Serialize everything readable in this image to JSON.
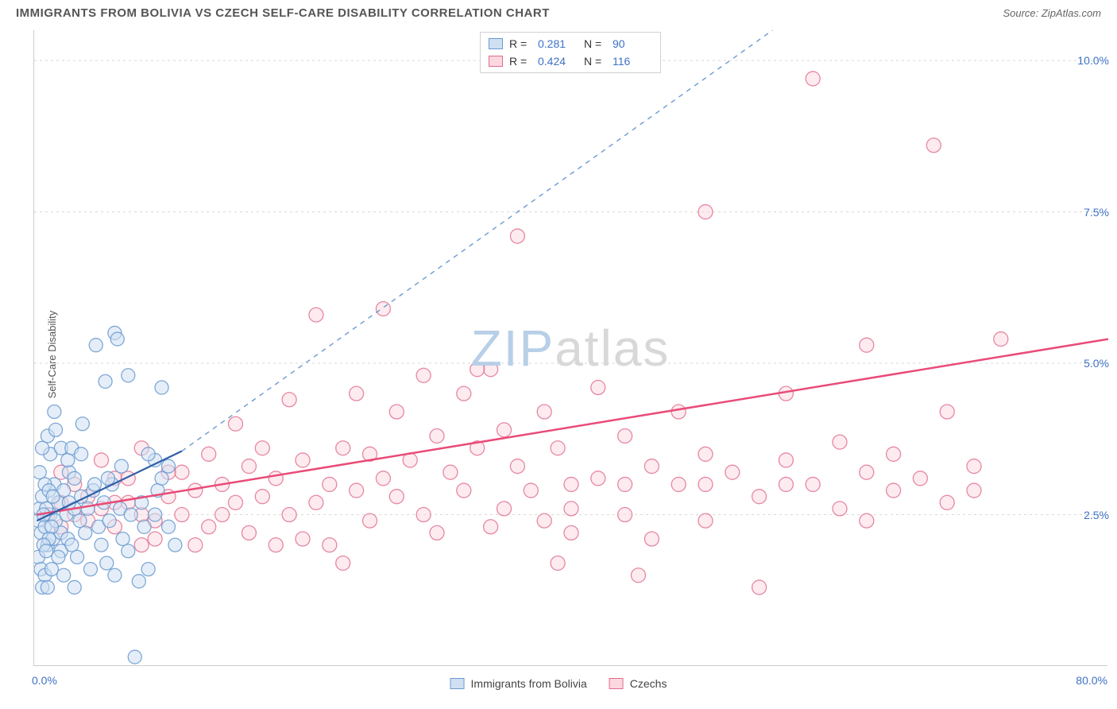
{
  "header": {
    "title": "IMMIGRANTS FROM BOLIVIA VS CZECH SELF-CARE DISABILITY CORRELATION CHART",
    "source": "Source: ZipAtlas.com"
  },
  "chart": {
    "type": "scatter",
    "ylabel": "Self-Care Disability",
    "watermark_a": "ZIP",
    "watermark_b": "atlas",
    "background_color": "#ffffff",
    "grid_color": "#d8d8d8",
    "axis_color": "#cccccc",
    "tick_color_x": "#cccccc",
    "xlim": [
      0,
      80
    ],
    "ylim": [
      0,
      10.5
    ],
    "x_ticks": [
      0,
      10,
      20,
      30,
      40,
      50,
      60,
      70,
      80
    ],
    "y_gridlines": [
      2.5,
      5.0,
      7.5,
      10.0
    ],
    "x_axis_labels": [
      {
        "v": 0,
        "t": "0.0%"
      },
      {
        "v": 80,
        "t": "80.0%"
      }
    ],
    "y_axis_labels": [
      {
        "v": 2.5,
        "t": "2.5%"
      },
      {
        "v": 5.0,
        "t": "5.0%"
      },
      {
        "v": 7.5,
        "t": "7.5%"
      },
      {
        "v": 10.0,
        "t": "10.0%"
      }
    ],
    "series": [
      {
        "name": "Immigrants from Bolivia",
        "marker_fill": "#cfe0f3",
        "marker_stroke": "#6a9ad0",
        "stroke_opacity": 0.85,
        "fill_opacity": 0.55,
        "marker_radius": 8.5,
        "line_color": "#2f5fa8",
        "line_width": 2.2,
        "line_dash_ext": "6 6",
        "dash_ext_color": "#6a9ad0",
        "R": "0.281",
        "N": "90",
        "trend_solid": {
          "x1": 0.2,
          "y1": 2.4,
          "x2": 11,
          "y2": 3.55
        },
        "trend_dash": {
          "x1": 11,
          "y1": 3.55,
          "x2": 55,
          "y2": 10.5
        },
        "points": [
          [
            0.3,
            2.4
          ],
          [
            0.4,
            2.6
          ],
          [
            0.5,
            2.2
          ],
          [
            0.6,
            2.8
          ],
          [
            0.8,
            2.3
          ],
          [
            1.0,
            2.0
          ],
          [
            1.2,
            2.5
          ],
          [
            1.4,
            2.1
          ],
          [
            1.5,
            3.0
          ],
          [
            1.6,
            2.4
          ],
          [
            1.8,
            2.7
          ],
          [
            2.0,
            2.2
          ],
          [
            2.0,
            1.9
          ],
          [
            2.2,
            2.9
          ],
          [
            2.4,
            2.5
          ],
          [
            2.5,
            2.1
          ],
          [
            2.6,
            3.2
          ],
          [
            2.8,
            2.0
          ],
          [
            3.0,
            2.6
          ],
          [
            3.2,
            1.8
          ],
          [
            3.4,
            2.4
          ],
          [
            3.5,
            2.8
          ],
          [
            3.6,
            4.0
          ],
          [
            3.8,
            2.2
          ],
          [
            4.0,
            2.6
          ],
          [
            4.2,
            1.6
          ],
          [
            4.4,
            2.9
          ],
          [
            4.6,
            5.3
          ],
          [
            4.8,
            2.3
          ],
          [
            5.0,
            2.0
          ],
          [
            5.2,
            2.7
          ],
          [
            5.4,
            1.7
          ],
          [
            5.6,
            2.4
          ],
          [
            5.8,
            3.0
          ],
          [
            6.0,
            1.5
          ],
          [
            6.0,
            5.5
          ],
          [
            6.2,
            5.4
          ],
          [
            6.4,
            2.6
          ],
          [
            6.6,
            2.1
          ],
          [
            7.0,
            4.8
          ],
          [
            7.0,
            1.9
          ],
          [
            7.2,
            2.5
          ],
          [
            7.5,
            0.15
          ],
          [
            7.8,
            1.4
          ],
          [
            8.0,
            2.7
          ],
          [
            8.2,
            2.3
          ],
          [
            8.5,
            1.6
          ],
          [
            9.0,
            2.5
          ],
          [
            9.0,
            3.4
          ],
          [
            9.2,
            2.9
          ],
          [
            9.5,
            3.1
          ],
          [
            9.5,
            4.6
          ],
          [
            10.0,
            2.3
          ],
          [
            10.0,
            3.3
          ],
          [
            10.5,
            2.0
          ],
          [
            1.0,
            3.8
          ],
          [
            1.2,
            3.5
          ],
          [
            1.5,
            4.2
          ],
          [
            2.0,
            3.6
          ],
          [
            0.4,
            3.2
          ],
          [
            0.6,
            3.6
          ],
          [
            0.8,
            3.0
          ],
          [
            0.3,
            1.8
          ],
          [
            0.5,
            1.6
          ],
          [
            0.8,
            1.5
          ],
          [
            0.6,
            1.3
          ],
          [
            1.0,
            1.3
          ],
          [
            2.5,
            3.4
          ],
          [
            2.8,
            3.6
          ],
          [
            3.5,
            3.5
          ],
          [
            3.0,
            3.1
          ],
          [
            6.5,
            3.3
          ],
          [
            4.5,
            3.0
          ],
          [
            5.5,
            3.1
          ],
          [
            1.8,
            1.8
          ],
          [
            1.3,
            1.6
          ],
          [
            2.2,
            1.5
          ],
          [
            3.0,
            1.3
          ],
          [
            1.6,
            3.9
          ],
          [
            8.5,
            3.5
          ],
          [
            1.1,
            2.9
          ],
          [
            1.3,
            2.3
          ],
          [
            0.9,
            2.6
          ],
          [
            1.1,
            2.1
          ],
          [
            1.4,
            2.8
          ],
          [
            0.7,
            2.0
          ],
          [
            0.7,
            2.5
          ],
          [
            0.9,
            1.9
          ],
          [
            2.6,
            2.7
          ],
          [
            5.3,
            4.7
          ]
        ]
      },
      {
        "name": "Czechs",
        "marker_fill": "#fbd7df",
        "marker_stroke": "#e06c8c",
        "stroke_opacity": 0.8,
        "fill_opacity": 0.5,
        "marker_radius": 9,
        "line_color": "#e94b77",
        "line_width": 2.5,
        "R": "0.424",
        "N": "116",
        "trend_solid": {
          "x1": 0.2,
          "y1": 2.5,
          "x2": 80,
          "y2": 5.4
        },
        "points": [
          [
            1,
            2.5
          ],
          [
            2,
            2.7
          ],
          [
            3,
            2.5
          ],
          [
            4,
            2.4
          ],
          [
            5,
            2.6
          ],
          [
            6,
            2.3
          ],
          [
            7,
            2.7
          ],
          [
            8,
            2.5
          ],
          [
            9,
            2.4
          ],
          [
            10,
            2.8
          ],
          [
            11,
            3.2
          ],
          [
            11,
            2.5
          ],
          [
            12,
            2.9
          ],
          [
            13,
            2.3
          ],
          [
            13,
            3.5
          ],
          [
            14,
            3.0
          ],
          [
            14,
            2.5
          ],
          [
            15,
            2.7
          ],
          [
            15,
            4.0
          ],
          [
            16,
            3.3
          ],
          [
            17,
            2.8
          ],
          [
            17,
            3.6
          ],
          [
            18,
            3.1
          ],
          [
            19,
            2.5
          ],
          [
            19,
            4.4
          ],
          [
            20,
            3.4
          ],
          [
            20,
            2.1
          ],
          [
            21,
            2.7
          ],
          [
            21,
            5.8
          ],
          [
            22,
            3.0
          ],
          [
            23,
            3.6
          ],
          [
            23,
            1.7
          ],
          [
            24,
            2.9
          ],
          [
            24,
            4.5
          ],
          [
            25,
            3.5
          ],
          [
            25,
            2.4
          ],
          [
            26,
            5.9
          ],
          [
            26,
            3.1
          ],
          [
            27,
            2.8
          ],
          [
            27,
            4.2
          ],
          [
            28,
            3.4
          ],
          [
            29,
            2.5
          ],
          [
            29,
            4.8
          ],
          [
            30,
            3.8
          ],
          [
            30,
            2.2
          ],
          [
            31,
            3.2
          ],
          [
            32,
            2.9
          ],
          [
            32,
            4.5
          ],
          [
            33,
            3.6
          ],
          [
            34,
            2.3
          ],
          [
            34,
            4.9
          ],
          [
            35,
            3.9
          ],
          [
            35,
            2.6
          ],
          [
            36,
            3.3
          ],
          [
            36,
            7.1
          ],
          [
            37,
            2.9
          ],
          [
            38,
            2.4
          ],
          [
            38,
            4.2
          ],
          [
            39,
            3.6
          ],
          [
            39,
            1.7
          ],
          [
            40,
            2.6
          ],
          [
            40,
            2.2
          ],
          [
            42,
            3.1
          ],
          [
            42,
            4.6
          ],
          [
            44,
            3.8
          ],
          [
            44,
            2.5
          ],
          [
            46,
            3.3
          ],
          [
            46,
            2.1
          ],
          [
            48,
            3.0
          ],
          [
            48,
            4.2
          ],
          [
            50,
            3.5
          ],
          [
            50,
            2.4
          ],
          [
            50,
            7.5
          ],
          [
            52,
            3.2
          ],
          [
            54,
            2.8
          ],
          [
            54,
            1.3
          ],
          [
            56,
            3.4
          ],
          [
            56,
            4.5
          ],
          [
            58,
            3.0
          ],
          [
            58,
            9.7
          ],
          [
            60,
            2.6
          ],
          [
            60,
            3.7
          ],
          [
            62,
            3.2
          ],
          [
            62,
            5.3
          ],
          [
            64,
            2.9
          ],
          [
            64,
            3.5
          ],
          [
            66,
            3.1
          ],
          [
            67,
            8.6
          ],
          [
            68,
            2.7
          ],
          [
            68,
            4.2
          ],
          [
            70,
            3.3
          ],
          [
            70,
            2.9
          ],
          [
            72,
            5.4
          ],
          [
            5,
            3.4
          ],
          [
            6,
            3.1
          ],
          [
            8,
            3.6
          ],
          [
            9,
            2.1
          ],
          [
            10,
            3.2
          ],
          [
            12,
            2.0
          ],
          [
            16,
            2.2
          ],
          [
            18,
            2.0
          ],
          [
            22,
            2.0
          ],
          [
            6,
            2.7
          ],
          [
            7,
            3.1
          ],
          [
            4,
            2.8
          ],
          [
            3,
            3.0
          ],
          [
            2,
            3.2
          ],
          [
            8,
            2.0
          ],
          [
            45,
            1.5
          ],
          [
            50,
            3.0
          ],
          [
            56,
            3.0
          ],
          [
            62,
            2.4
          ],
          [
            33,
            4.9
          ],
          [
            44,
            3.0
          ],
          [
            40,
            3.0
          ],
          [
            2,
            2.3
          ]
        ]
      }
    ],
    "bottom_legend": [
      {
        "label": "Immigrants from Bolivia",
        "fill": "#cfe0f3",
        "stroke": "#6a9ad0"
      },
      {
        "label": "Czechs",
        "fill": "#fbd7df",
        "stroke": "#e06c8c"
      }
    ]
  }
}
